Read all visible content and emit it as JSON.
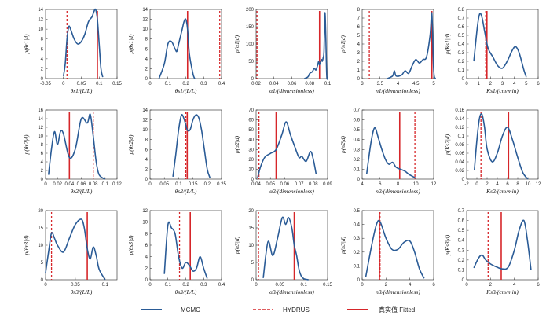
{
  "colors": {
    "mcmc": "#2a5b96",
    "hydrus": "#d6262a",
    "fitted": "#d6262a",
    "axis": "#222222"
  },
  "legend": {
    "mcmc": "MCMC",
    "hydrus": "HYDRUS",
    "fitted": "真实值  Fitted"
  },
  "chart_data": [
    {
      "type": "line",
      "ylabel": "p(θr1|d)",
      "xlabel": "θr1/(L/L)",
      "xlim": [
        -0.05,
        0.15
      ],
      "ylim": [
        0,
        14
      ],
      "xticks": [
        "-0.05",
        "0",
        "0.05",
        "0.1",
        "0.15"
      ],
      "yticks": [
        "0",
        "2",
        "4",
        "6",
        "8",
        "10",
        "12",
        "14"
      ],
      "hydrus": 0.01,
      "fitted": 0.095,
      "x": [
        0.0,
        0.005,
        0.01,
        0.015,
        0.02,
        0.03,
        0.04,
        0.05,
        0.06,
        0.07,
        0.08,
        0.085,
        0.09,
        0.095,
        0.1,
        0.105,
        0.11
      ],
      "values": [
        0.5,
        3,
        8,
        10.5,
        10,
        8,
        7,
        7.5,
        9,
        11.5,
        12.5,
        13.5,
        14,
        12,
        7,
        2,
        0.3
      ]
    },
    {
      "type": "line",
      "ylabel": "p(θs1|d)",
      "xlabel": "θs1/(L/L)",
      "xlim": [
        0,
        0.4
      ],
      "ylim": [
        0,
        14
      ],
      "xticks": [
        "0",
        "0.1",
        "0.2",
        "0.3",
        "0.4"
      ],
      "yticks": [
        "0",
        "2",
        "4",
        "6",
        "8",
        "10",
        "12",
        "14"
      ],
      "hydrus": 0.39,
      "fitted": 0.21,
      "x": [
        0.05,
        0.08,
        0.1,
        0.12,
        0.14,
        0.15,
        0.16,
        0.18,
        0.19,
        0.2,
        0.21,
        0.22,
        0.24,
        0.25
      ],
      "values": [
        0,
        3,
        7,
        7.5,
        6,
        5.5,
        7,
        10,
        11.5,
        12,
        10,
        5,
        1,
        0
      ]
    },
    {
      "type": "line",
      "ylabel": "p(α1|d)",
      "xlabel": "α1/(dimensionless)",
      "xlim": [
        0.02,
        0.1
      ],
      "ylim": [
        0,
        200
      ],
      "xticks": [
        "0.02",
        "0.04",
        "0.06",
        "0.08",
        "0.1"
      ],
      "yticks": [
        "0",
        "50",
        "100",
        "150",
        "200"
      ],
      "hydrus": 0.021,
      "fitted": 0.091,
      "x": [
        0.074,
        0.078,
        0.08,
        0.083,
        0.085,
        0.087,
        0.089,
        0.09,
        0.091,
        0.093,
        0.094,
        0.095,
        0.096,
        0.097,
        0.098,
        0.099,
        0.1
      ],
      "values": [
        0,
        5,
        15,
        20,
        30,
        25,
        40,
        50,
        40,
        55,
        50,
        60,
        80,
        190,
        120,
        10,
        0
      ]
    },
    {
      "type": "line",
      "ylabel": "p(n1|d)",
      "xlabel": "n1/(dimensionless)",
      "xlim": [
        3,
        5
      ],
      "ylim": [
        0,
        8
      ],
      "xticks": [
        "3",
        "3.5",
        "4",
        "4.5",
        "5"
      ],
      "yticks": [
        "0",
        "1",
        "2",
        "3",
        "4",
        "5",
        "6",
        "7",
        "8"
      ],
      "hydrus": 3.2,
      "fitted": 4.95,
      "x": [
        3.7,
        3.85,
        3.9,
        3.95,
        4.1,
        4.2,
        4.3,
        4.4,
        4.5,
        4.6,
        4.7,
        4.8,
        4.9,
        4.95,
        5.0,
        5.05
      ],
      "values": [
        0,
        0.3,
        0.9,
        0.3,
        0.4,
        0.9,
        0.6,
        1.5,
        2.2,
        1.8,
        2.2,
        2.5,
        5,
        7.5,
        1,
        0
      ]
    },
    {
      "type": "line",
      "ylabel": "p(Ks1|d)",
      "xlabel": "Ks1/(cm/min)",
      "xlim": [
        0,
        6
      ],
      "ylim": [
        0,
        0.8
      ],
      "xticks": [
        "0",
        "1",
        "2",
        "3",
        "4",
        "5",
        "6"
      ],
      "yticks": [
        "0",
        "0.1",
        "0.2",
        "0.3",
        "0.4",
        "0.5",
        "0.6",
        "0.7",
        "0.8"
      ],
      "hydrus": 1.6,
      "fitted": 1.7,
      "x": [
        0.6,
        0.9,
        1.1,
        1.3,
        1.5,
        1.8,
        2.2,
        2.6,
        3.0,
        3.4,
        3.8,
        4.1,
        4.4,
        4.8,
        5.0
      ],
      "values": [
        0.2,
        0.6,
        0.75,
        0.7,
        0.55,
        0.35,
        0.25,
        0.15,
        0.12,
        0.2,
        0.32,
        0.37,
        0.3,
        0.1,
        0.02
      ]
    },
    {
      "type": "line",
      "ylabel": "p(θr2|d)",
      "xlabel": "θr2/(L/L)",
      "xlim": [
        0,
        0.12
      ],
      "ylim": [
        0,
        16
      ],
      "xticks": [
        "0",
        "0.02",
        "0.04",
        "0.06",
        "0.08",
        "0.1",
        "0.12"
      ],
      "yticks": [
        "0",
        "2",
        "4",
        "6",
        "8",
        "10",
        "12",
        "14",
        "16"
      ],
      "hydrus": 0.08,
      "fitted": 0.04,
      "x": [
        0.005,
        0.01,
        0.015,
        0.02,
        0.025,
        0.03,
        0.04,
        0.05,
        0.06,
        0.07,
        0.075,
        0.08,
        0.085,
        0.09,
        0.1
      ],
      "values": [
        1,
        7,
        11,
        8,
        11,
        10.5,
        5,
        7,
        14,
        13,
        15,
        10,
        4,
        1,
        0
      ]
    },
    {
      "type": "line",
      "ylabel": "p(θs2|d)",
      "xlabel": "θs2/(L/L)",
      "xlim": [
        0,
        0.25
      ],
      "ylim": [
        0,
        14
      ],
      "xticks": [
        "0",
        "0.05",
        "0.1",
        "0.15",
        "0.2",
        "0.25"
      ],
      "yticks": [
        "0",
        "2",
        "4",
        "6",
        "8",
        "10",
        "12",
        "14"
      ],
      "hydrus": 0.125,
      "fitted": 0.13,
      "x": [
        0.08,
        0.09,
        0.1,
        0.11,
        0.12,
        0.13,
        0.14,
        0.15,
        0.16,
        0.17,
        0.18,
        0.19,
        0.2,
        0.21
      ],
      "values": [
        0.5,
        5,
        10,
        13,
        12,
        10,
        10,
        12,
        13,
        12.5,
        10,
        6,
        2,
        0.2
      ]
    },
    {
      "type": "line",
      "ylabel": "p(α2|d)",
      "xlabel": "α2/(dimensionless)",
      "xlim": [
        0.04,
        0.09
      ],
      "ylim": [
        0,
        70
      ],
      "xticks": [
        "0.04",
        "0.05",
        "0.06",
        "0.07",
        "0.08",
        "0.09"
      ],
      "yticks": [
        "0",
        "10",
        "20",
        "30",
        "40",
        "50",
        "60",
        "70"
      ],
      "hydrus": 0.042,
      "fitted": 0.054,
      "x": [
        0.041,
        0.043,
        0.046,
        0.05,
        0.054,
        0.058,
        0.061,
        0.064,
        0.067,
        0.07,
        0.072,
        0.075,
        0.078,
        0.08,
        0.082
      ],
      "values": [
        1,
        12,
        22,
        26,
        30,
        45,
        58,
        45,
        33,
        22,
        23,
        18,
        28,
        20,
        5
      ]
    },
    {
      "type": "line",
      "ylabel": "p(n2|d)",
      "xlabel": "n2/(dimensionless)",
      "xlim": [
        4,
        12
      ],
      "ylim": [
        0,
        0.7
      ],
      "xticks": [
        "4",
        "6",
        "8",
        "10",
        "12"
      ],
      "yticks": [
        "0",
        "0.1",
        "0.2",
        "0.3",
        "0.4",
        "0.5",
        "0.6",
        "0.7"
      ],
      "hydrus": 9.9,
      "fitted": 8.2,
      "x": [
        4.5,
        5.0,
        5.4,
        5.8,
        6.2,
        6.6,
        7.0,
        7.4,
        7.8,
        8.3,
        8.8,
        9.2,
        9.6,
        10.0
      ],
      "values": [
        0.05,
        0.38,
        0.52,
        0.42,
        0.3,
        0.2,
        0.15,
        0.17,
        0.12,
        0.1,
        0.08,
        0.05,
        0.03,
        0.01
      ]
    },
    {
      "type": "line",
      "ylabel": "p(Ks2|d)",
      "xlabel": "Ks2/(cm/min)",
      "xlim": [
        -2,
        12
      ],
      "ylim": [
        0,
        0.16
      ],
      "xticks": [
        "-2",
        "0",
        "2",
        "4",
        "6",
        "8",
        "10",
        "12"
      ],
      "yticks": [
        "0",
        "0.02",
        "0.04",
        "0.06",
        "0.08",
        "0.1",
        "0.12",
        "0.14",
        "0.16"
      ],
      "hydrus": 0.8,
      "fitted": 6.2,
      "x": [
        -0.5,
        0.0,
        0.5,
        1.0,
        1.5,
        2.0,
        3.0,
        4.0,
        5.0,
        6.0,
        7.0,
        8.0,
        9.0,
        10.0
      ],
      "values": [
        0.02,
        0.09,
        0.14,
        0.15,
        0.12,
        0.07,
        0.04,
        0.06,
        0.1,
        0.12,
        0.09,
        0.05,
        0.015,
        0
      ]
    },
    {
      "type": "line",
      "ylabel": "p(θr3|d)",
      "xlabel": "θr3/(L/L)",
      "xlim": [
        0,
        0.12
      ],
      "ylim": [
        0,
        20
      ],
      "xticks": [
        "0",
        "0.05",
        "0.1"
      ],
      "yticks": [
        "0",
        "5",
        "10",
        "15",
        "20"
      ],
      "hydrus": 0.01,
      "fitted": 0.07,
      "x": [
        0.0,
        0.005,
        0.01,
        0.015,
        0.02,
        0.03,
        0.04,
        0.05,
        0.06,
        0.065,
        0.07,
        0.075,
        0.08,
        0.085,
        0.09,
        0.1
      ],
      "values": [
        2,
        8,
        13.5,
        12,
        10,
        8,
        12,
        16,
        17.5,
        15,
        9,
        6,
        9.5,
        7,
        3,
        0
      ]
    },
    {
      "type": "line",
      "ylabel": "p(θs3|d)",
      "xlabel": "θs3/(L/L)",
      "xlim": [
        0,
        0.4
      ],
      "ylim": [
        0,
        12
      ],
      "xticks": [
        "0",
        "0.1",
        "0.2",
        "0.3",
        "0.4"
      ],
      "yticks": [
        "0",
        "2",
        "4",
        "6",
        "8",
        "10",
        "12"
      ],
      "hydrus": 0.165,
      "fitted": 0.225,
      "x": [
        0.08,
        0.1,
        0.12,
        0.14,
        0.16,
        0.18,
        0.2,
        0.22,
        0.24,
        0.26,
        0.28,
        0.3,
        0.32
      ],
      "values": [
        1,
        9.5,
        9,
        8,
        4,
        2,
        3,
        2.5,
        1.5,
        2,
        4,
        2,
        0.2
      ]
    },
    {
      "type": "line",
      "ylabel": "p(α3|d)",
      "xlabel": "α3/(dimensionless)",
      "xlim": [
        0,
        0.15
      ],
      "ylim": [
        0,
        20
      ],
      "xticks": [
        "0",
        "0.05",
        "0.1",
        "0.15"
      ],
      "yticks": [
        "0",
        "5",
        "10",
        "15",
        "20"
      ],
      "hydrus": 0.005,
      "fitted": 0.08,
      "x": [
        0.015,
        0.025,
        0.035,
        0.045,
        0.055,
        0.062,
        0.068,
        0.075,
        0.08,
        0.085,
        0.09,
        0.095,
        0.1,
        0.11
      ],
      "values": [
        0.5,
        11,
        7,
        12,
        18,
        16,
        18,
        15,
        10,
        7,
        3,
        1,
        0.3,
        0
      ]
    },
    {
      "type": "line",
      "ylabel": "p(n3|d)",
      "xlabel": "n3/(dimensionless)",
      "xlim": [
        0,
        6
      ],
      "ylim": [
        0,
        0.5
      ],
      "xticks": [
        "0",
        "2",
        "4",
        "6"
      ],
      "yticks": [
        "0",
        "0.1",
        "0.2",
        "0.3",
        "0.4",
        "0.5"
      ],
      "hydrus": 1.5,
      "fitted": 1.45,
      "x": [
        0.3,
        0.8,
        1.2,
        1.5,
        2.0,
        2.5,
        3.0,
        3.5,
        4.0,
        4.4,
        4.8,
        5.2
      ],
      "values": [
        0.02,
        0.25,
        0.4,
        0.42,
        0.3,
        0.22,
        0.22,
        0.27,
        0.28,
        0.2,
        0.08,
        0.01
      ]
    },
    {
      "type": "line",
      "ylabel": "p(Ks3|d)",
      "xlabel": "Ks3/(cm/min)",
      "xlim": [
        0,
        6
      ],
      "ylim": [
        0,
        0.7
      ],
      "xticks": [
        "0",
        "2",
        "4",
        "6"
      ],
      "yticks": [
        "0",
        "0.1",
        "0.2",
        "0.3",
        "0.4",
        "0.5",
        "0.6",
        "0.7"
      ],
      "hydrus": 1.8,
      "fitted": 2.9,
      "x": [
        0.6,
        1.0,
        1.3,
        1.6,
        2.0,
        2.5,
        3.0,
        3.5,
        4.0,
        4.4,
        4.8,
        5.1,
        5.4
      ],
      "values": [
        0.12,
        0.22,
        0.25,
        0.2,
        0.16,
        0.13,
        0.11,
        0.13,
        0.3,
        0.5,
        0.6,
        0.4,
        0.1
      ]
    }
  ]
}
